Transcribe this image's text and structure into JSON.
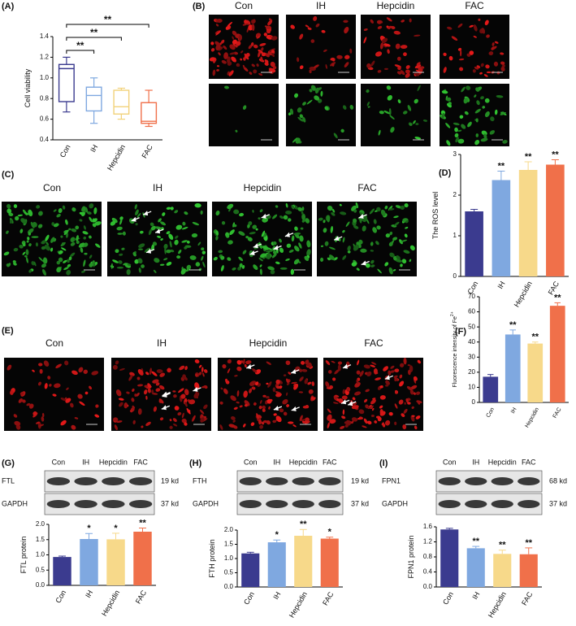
{
  "panel_labels": [
    "(A)",
    "(B)",
    "(C)",
    "(D)",
    "(E)",
    "(F)",
    "(G)",
    "(H)",
    "(I)"
  ],
  "panel_b": {
    "columns": [
      "Con",
      "IH",
      "Hepcidin",
      "FAC"
    ]
  },
  "panel_c": {
    "columns": [
      "Con",
      "IH",
      "Hepcidin",
      "FAC"
    ]
  },
  "panel_e": {
    "columns": [
      "Con",
      "IH",
      "Hepcidin",
      "FAC"
    ]
  },
  "blots": [
    {
      "lanes": [
        "Con",
        "IH",
        "Hepcidin",
        "FAC"
      ],
      "rows": [
        {
          "protein": "FTL",
          "size": "19 kd"
        },
        {
          "protein": "GAPDH",
          "size": "37 kd"
        }
      ]
    },
    {
      "lanes": [
        "Con",
        "IH",
        "Hepcidin",
        "FAC"
      ],
      "rows": [
        {
          "protein": "FTH",
          "size": "19 kd"
        },
        {
          "protein": "GAPDH",
          "size": "37 kd"
        }
      ]
    },
    {
      "lanes": [
        "Con",
        "IH",
        "Hepcidin",
        "FAC"
      ],
      "rows": [
        {
          "protein": "FPN1",
          "size": "68 kd"
        },
        {
          "protein": "GAPDH",
          "size": "37 kd"
        }
      ]
    }
  ],
  "chart_data": [
    {
      "type": "box",
      "y_label": "Cell viability",
      "categories": [
        "Con",
        "IH",
        "Hepcidin",
        "FAC"
      ],
      "colors": [
        "#3b3b8f",
        "#7fa8e0",
        "#f2d27a",
        "#f0704a"
      ],
      "min": [
        0.67,
        0.56,
        0.6,
        0.53
      ],
      "q1": [
        0.77,
        0.68,
        0.65,
        0.56
      ],
      "median": [
        1.09,
        0.83,
        0.72,
        0.58
      ],
      "q3": [
        1.13,
        0.91,
        0.88,
        0.76
      ],
      "max": [
        1.2,
        1.0,
        0.9,
        0.88
      ],
      "ylim": [
        0.4,
        1.4
      ],
      "yticks": [
        0.4,
        0.6,
        0.8,
        {
          "value": 1,
          "label": "1.0"
        },
        1.2,
        1.4
      ],
      "bracket_labels": [
        "**",
        "**",
        "**"
      ]
    },
    {
      "type": "bar",
      "y_label": "The ROS level",
      "categories": [
        "Con",
        "IH",
        "Hepcidin",
        "FAC"
      ],
      "colors": [
        "#3b3b8f",
        "#7fa8e0",
        "#f7d98a",
        "#f0704a"
      ],
      "values": [
        1.6,
        2.37,
        2.62,
        2.75
      ],
      "errors": [
        0.05,
        0.22,
        0.2,
        0.12
      ],
      "significance": [
        null,
        "**",
        "**",
        "**"
      ],
      "ylim": [
        0,
        3
      ],
      "yticks": [
        0,
        1,
        2,
        3
      ]
    },
    {
      "type": "bar",
      "y_label": "Fluorescence intensity of Fe",
      "y_label_superscript": "2+",
      "categories": [
        "Con",
        "IH",
        "Hepcidin",
        "FAC"
      ],
      "colors": [
        "#3b3b8f",
        "#7fa8e0",
        "#f7d98a",
        "#f0704a"
      ],
      "values": [
        17,
        45,
        39,
        64
      ],
      "errors": [
        1.5,
        3,
        1,
        2
      ],
      "significance": [
        null,
        "**",
        "**",
        "**"
      ],
      "ylim": [
        0,
        70
      ],
      "yticks": [
        0,
        10,
        20,
        30,
        40,
        50,
        60,
        70
      ]
    },
    {
      "type": "bar",
      "y_label": "FTL protein",
      "categories": [
        "Con",
        "IH",
        "Hepcidin",
        "FAC"
      ],
      "colors": [
        "#3b3b8f",
        "#7fa8e0",
        "#f7d98a",
        "#f0704a"
      ],
      "values": [
        0.93,
        1.52,
        1.51,
        1.76
      ],
      "errors": [
        0.03,
        0.18,
        0.2,
        0.12
      ],
      "significance": [
        null,
        "*",
        "*",
        "**"
      ],
      "ylim": [
        0,
        2
      ],
      "yticks": [
        {
          "value": 0,
          "label": "0.0"
        },
        0.5,
        {
          "value": 1,
          "label": "1.0"
        },
        1.5,
        {
          "value": 2,
          "label": "2.0"
        }
      ]
    },
    {
      "type": "bar",
      "y_label": "FTH protein",
      "categories": [
        "Con",
        "IH",
        "Hepcidin",
        "FAC"
      ],
      "colors": [
        "#3b3b8f",
        "#7fa8e0",
        "#f7d98a",
        "#f0704a"
      ],
      "values": [
        1.18,
        1.57,
        1.8,
        1.7
      ],
      "errors": [
        0.04,
        0.08,
        0.22,
        0.05
      ],
      "significance": [
        null,
        "*",
        "**",
        "*"
      ],
      "ylim": [
        0,
        2
      ],
      "yticks": [
        {
          "value": 0,
          "label": "0.0"
        },
        0.5,
        {
          "value": 1,
          "label": "1.0"
        },
        1.5,
        {
          "value": 2,
          "label": "2.0"
        }
      ]
    },
    {
      "type": "bar",
      "y_label": "FPN1 protein",
      "categories": [
        "Con",
        "IH",
        "Hepcidin",
        "FAC"
      ],
      "colors": [
        "#3b3b8f",
        "#7fa8e0",
        "#f7d98a",
        "#f0704a"
      ],
      "values": [
        1.53,
        1.03,
        0.88,
        0.87
      ],
      "errors": [
        0.03,
        0.05,
        0.1,
        0.17
      ],
      "significance": [
        null,
        "**",
        "**",
        "**"
      ],
      "ylim": [
        0,
        1.6
      ],
      "yticks": [
        {
          "value": 0,
          "label": "0.0"
        },
        0.4,
        0.8,
        1.2,
        1.6
      ]
    }
  ]
}
